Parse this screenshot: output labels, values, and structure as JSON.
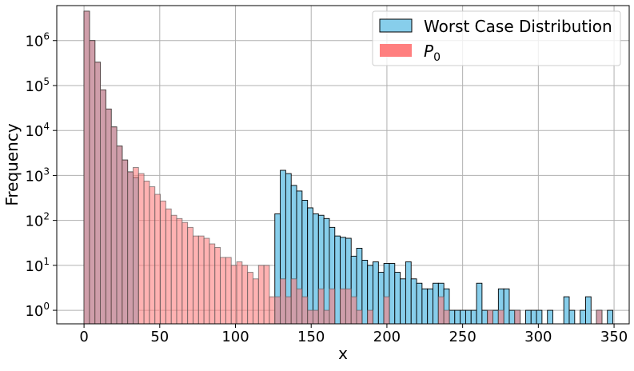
{
  "chart_data": {
    "type": "bar",
    "title": "",
    "xlabel": "x",
    "ylabel": "Frequency",
    "yscale": "log",
    "xlim": [
      -18,
      360
    ],
    "ylim": [
      0.5,
      6000000
    ],
    "bin_width": 3.6,
    "x_ticks": [
      0,
      50,
      100,
      150,
      200,
      250,
      300,
      350
    ],
    "x_tick_labels": [
      "0",
      "50",
      "100",
      "150",
      "200",
      "250",
      "300",
      "350"
    ],
    "y_ticks": [
      1,
      10,
      100,
      1000,
      10000,
      100000,
      1000000
    ],
    "y_tick_labels": [
      {
        "base": "10",
        "exp": "0"
      },
      {
        "base": "10",
        "exp": "1"
      },
      {
        "base": "10",
        "exp": "2"
      },
      {
        "base": "10",
        "exp": "3"
      },
      {
        "base": "10",
        "exp": "4"
      },
      {
        "base": "10",
        "exp": "5"
      },
      {
        "base": "10",
        "exp": "6"
      }
    ],
    "grid": true,
    "legend_position": "top-right",
    "series": [
      {
        "name": "Worst Case Distribution",
        "color": "#87CEEB",
        "edge": "#000000",
        "alpha": 1.0,
        "x": [
          0,
          3.6,
          7.2,
          10.8,
          14.4,
          18,
          21.6,
          25.2,
          28.8,
          32.4,
          36,
          39.6,
          43.2,
          46.8,
          50.4,
          54,
          57.6,
          61.2,
          64.8,
          68.4,
          72,
          75.6,
          79.2,
          82.8,
          86.4,
          90,
          93.6,
          97.2,
          100.8,
          104.4,
          108,
          111.6,
          115.2,
          118.8,
          122.4,
          126,
          129.6,
          133.2,
          136.8,
          140.4,
          144,
          147.6,
          151.2,
          154.8,
          158.4,
          162,
          165.6,
          169.2,
          172.8,
          176.4,
          180,
          183.6,
          187.2,
          190.8,
          194.4,
          198,
          201.6,
          205.2,
          208.8,
          212.4,
          216,
          219.6,
          223.2,
          226.8,
          230.4,
          234,
          237.6,
          241.2,
          244.8,
          248.4,
          252,
          255.6,
          259.2,
          262.8,
          266.4,
          270,
          273.6,
          277.2,
          280.8,
          284.4,
          288,
          291.6,
          295.2,
          298.8,
          302.4,
          306,
          309.6,
          313.2,
          316.8,
          320.4,
          324,
          327.6,
          331.2,
          334.8,
          338.4,
          342,
          345.6
        ],
        "values": [
          4500000,
          1000000,
          330000,
          80000,
          30000,
          12000,
          4500,
          2200,
          1200,
          900,
          0,
          0,
          0,
          0,
          0,
          0,
          0,
          0,
          0,
          0,
          0,
          0,
          0,
          0,
          0,
          0,
          0,
          0,
          0,
          0,
          0,
          0,
          0,
          0,
          0,
          140,
          1300,
          1100,
          600,
          450,
          280,
          190,
          140,
          130,
          110,
          70,
          45,
          42,
          40,
          16,
          24,
          13,
          10,
          12,
          7,
          11,
          11,
          7,
          5,
          12,
          5,
          4,
          3,
          3,
          4,
          4,
          3,
          1,
          1,
          1,
          1,
          1,
          4,
          1,
          1,
          1,
          3,
          3,
          1,
          1,
          0,
          1,
          1,
          1,
          0,
          1,
          0,
          0,
          2,
          1,
          0,
          1,
          2,
          0,
          1,
          0,
          1
        ]
      },
      {
        "name": "P_0",
        "name_base": "P",
        "name_sub": "0",
        "color": "#FF7F7F",
        "edge": "#555555",
        "alpha": 0.6,
        "x": [
          0,
          3.6,
          7.2,
          10.8,
          14.4,
          18,
          21.6,
          25.2,
          28.8,
          32.4,
          36,
          39.6,
          43.2,
          46.8,
          50.4,
          54,
          57.6,
          61.2,
          64.8,
          68.4,
          72,
          75.6,
          79.2,
          82.8,
          86.4,
          90,
          93.6,
          97.2,
          100.8,
          104.4,
          108,
          111.6,
          115.2,
          118.8,
          122.4,
          126,
          129.6,
          133.2,
          136.8,
          140.4,
          144,
          147.6,
          151.2,
          154.8,
          158.4,
          162,
          165.6,
          169.2,
          172.8,
          176.4,
          180,
          183.6,
          187.2,
          190.8,
          194.4,
          198,
          201.6,
          205.2,
          208.8,
          212.4,
          216,
          219.6,
          223.2,
          226.8,
          230.4,
          234,
          237.6,
          241.2,
          244.8,
          248.4,
          252,
          255.6,
          259.2,
          262.8,
          266.4,
          270,
          273.6,
          277.2,
          280.8,
          284.4,
          288,
          291.6,
          295.2,
          298.8,
          302.4,
          306,
          309.6,
          313.2,
          316.8,
          320.4,
          324,
          327.6,
          331.2,
          334.8,
          338.4,
          342,
          345.6
        ],
        "values": [
          4500000,
          1000000,
          330000,
          80000,
          30000,
          12000,
          4500,
          2200,
          1200,
          1500,
          1100,
          750,
          560,
          380,
          270,
          180,
          130,
          110,
          90,
          70,
          45,
          45,
          40,
          30,
          25,
          15,
          15,
          10,
          12,
          10,
          7,
          5,
          10,
          10,
          2,
          2,
          5,
          2,
          5,
          3,
          2,
          1,
          1,
          3,
          1,
          3,
          0,
          3,
          3,
          2,
          1,
          0,
          1,
          0,
          0,
          2,
          0,
          0,
          0,
          0,
          0,
          0,
          0,
          0,
          0,
          2,
          1,
          0,
          0,
          0,
          0,
          0,
          0,
          0,
          1,
          0,
          1,
          0,
          0,
          1,
          0,
          0,
          0,
          0,
          0,
          0,
          0,
          0,
          0,
          0,
          0,
          0,
          0,
          0,
          1,
          0,
          0
        ]
      }
    ]
  }
}
